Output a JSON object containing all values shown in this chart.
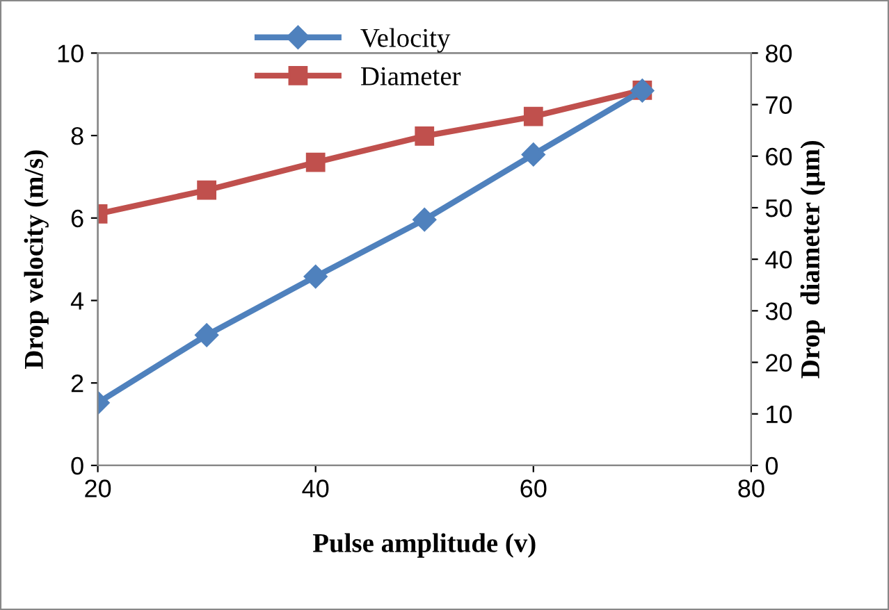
{
  "chart_data": {
    "type": "line",
    "xlabel": "Pulse amplitude (v)",
    "ylabel": "Drop velocity (m/s)",
    "y2label": "Drop  diameter (µm)",
    "x": [
      20,
      30,
      40,
      50,
      60,
      70
    ],
    "series": [
      {
        "name": "Velocity",
        "color": "#4f81bd",
        "marker": "diamond",
        "values": [
          1.52,
          3.16,
          4.58,
          5.96,
          7.54,
          9.09
        ]
      },
      {
        "name": "Diameter",
        "color": "#c0504d",
        "marker": "square",
        "axis": "y2",
        "values": [
          48.8,
          53.4,
          58.8,
          63.9,
          67.7,
          72.8
        ]
      }
    ],
    "xlim": [
      20,
      80
    ],
    "xticks": [
      20,
      40,
      60,
      80
    ],
    "ylim": [
      0,
      10
    ],
    "yticks": [
      0,
      2,
      4,
      6,
      8,
      10
    ],
    "y2lim": [
      0,
      80
    ],
    "y2ticks": [
      0,
      10,
      20,
      30,
      40,
      50,
      60,
      70,
      80
    ],
    "grid": false,
    "legend": "top",
    "line_style": "solid"
  }
}
